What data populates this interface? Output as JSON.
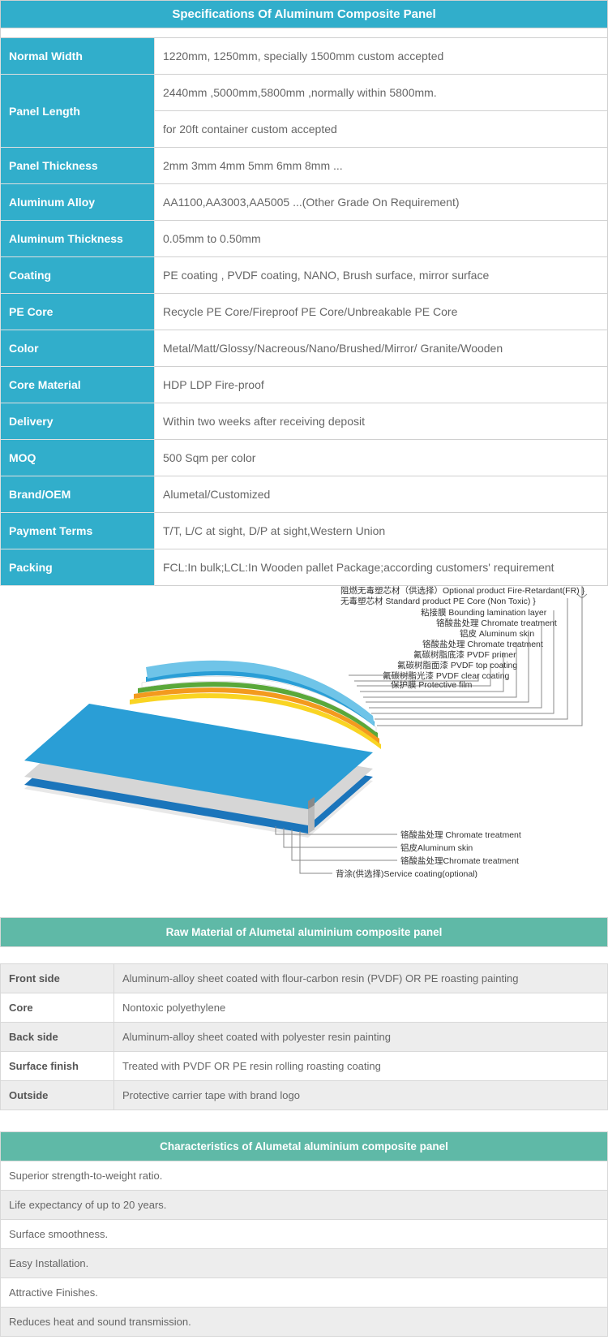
{
  "specs": {
    "title": "Specifications Of Aluminum Composite Panel",
    "header_bg": "#31aecb",
    "header_color": "#ffffff",
    "border_color": "#d0d0d0",
    "rows": [
      {
        "label": "Normal Width",
        "values": [
          "1220mm, 1250mm, specially 1500mm custom accepted"
        ]
      },
      {
        "label": "Panel Length",
        "values": [
          "2440mm ,5000mm,5800mm ,normally within 5800mm.",
          "for 20ft container custom accepted"
        ]
      },
      {
        "label": "Panel Thickness",
        "values": [
          "2mm 3mm 4mm 5mm 6mm 8mm ..."
        ]
      },
      {
        "label": "Aluminum Alloy",
        "values": [
          "AA1100,AA3003,AA5005 ...(Other Grade On Requirement)"
        ]
      },
      {
        "label": "Aluminum Thickness",
        "values": [
          "0.05mm to 0.50mm"
        ]
      },
      {
        "label": "Coating",
        "values": [
          "PE coating , PVDF coating, NANO, Brush surface, mirror surface"
        ]
      },
      {
        "label": "PE Core",
        "values": [
          "Recycle PE Core/Fireproof PE Core/Unbreakable PE Core"
        ]
      },
      {
        "label": "Color",
        "values": [
          "Metal/Matt/Glossy/Nacreous/Nano/Brushed/Mirror/ Granite/Wooden"
        ]
      },
      {
        "label": "Core Material",
        "values": [
          "HDP LDP Fire-proof"
        ]
      },
      {
        "label": "Delivery",
        "values": [
          "Within two weeks after receiving deposit"
        ]
      },
      {
        "label": "MOQ",
        "values": [
          "500 Sqm per color"
        ]
      },
      {
        "label": "Brand/OEM",
        "values": [
          "Alumetal/Customized"
        ]
      },
      {
        "label": "Payment Terms",
        "values": [
          "T/T, L/C at sight, D/P at sight,Western Union"
        ]
      },
      {
        "label": "Packing",
        "values": [
          "FCL:In bulk;LCL:In Wooden pallet Package;according customers' requirement"
        ]
      }
    ]
  },
  "diagram": {
    "layer_colors": {
      "top_blue": "#6fc4e8",
      "mid_blue": "#2a9ed6",
      "white": "#ffffff",
      "green": "#5aa83a",
      "orange": "#f39a1e",
      "yellow": "#f9d423",
      "gray1": "#d6d6d6",
      "gray2": "#bfbfbf",
      "dark_blue": "#1b75bb"
    },
    "top_labels": [
      "阻燃无毒塑芯材（供选择）Optional product Fire-Retardant(FR)",
      "无毒塑芯材 Standard product PE Core (Non Toxic)",
      "粘接膜 Bounding lamination layer",
      "铬酸盐处理 Chromate treatment",
      "铝皮 Aluminum skin",
      "铬酸盐处理 Chromate treatment",
      "氟碳树脂底漆 PVDF primer",
      "氟碳树脂面漆 PVDF top coating",
      "氟碳树脂光漆 PVDF clear coating",
      "保护膜 Protective film"
    ],
    "bottom_labels": [
      "铬酸盐处理 Chromate treatment",
      "铝皮Aluminum skin",
      "铬酸盐处理Chromate treatment",
      "背涂(供选择)Service coating(optional)"
    ]
  },
  "materials": {
    "title": "Raw Material of Alumetal aluminium composite panel",
    "header_bg": "#5fb9a7",
    "rows": [
      {
        "label": "Front side",
        "value": "Aluminum-alloy sheet coated with flour-carbon resin (PVDF) OR PE roasting painting",
        "gray": true
      },
      {
        "label": "Core",
        "value": "Nontoxic polyethylene",
        "gray": false
      },
      {
        "label": "Back side",
        "value": "Aluminum-alloy sheet coated with polyester resin painting",
        "gray": true
      },
      {
        "label": "Surface finish",
        "value": "Treated with PVDF OR PE resin rolling roasting coating",
        "gray": false
      },
      {
        "label": "Outside",
        "value": "Protective carrier tape with brand logo",
        "gray": true
      }
    ]
  },
  "characteristics": {
    "title": "Characteristics of Alumetal aluminium composite panel",
    "items": [
      {
        "text": "Superior strength-to-weight ratio.",
        "gray": false
      },
      {
        "text": "Life expectancy of up to 20 years.",
        "gray": true
      },
      {
        "text": "Surface smoothness.",
        "gray": false
      },
      {
        "text": "Easy Installation.",
        "gray": true
      },
      {
        "text": "Attractive Finishes.",
        "gray": false
      },
      {
        "text": "Reduces heat and sound transmission.",
        "gray": true
      }
    ]
  }
}
